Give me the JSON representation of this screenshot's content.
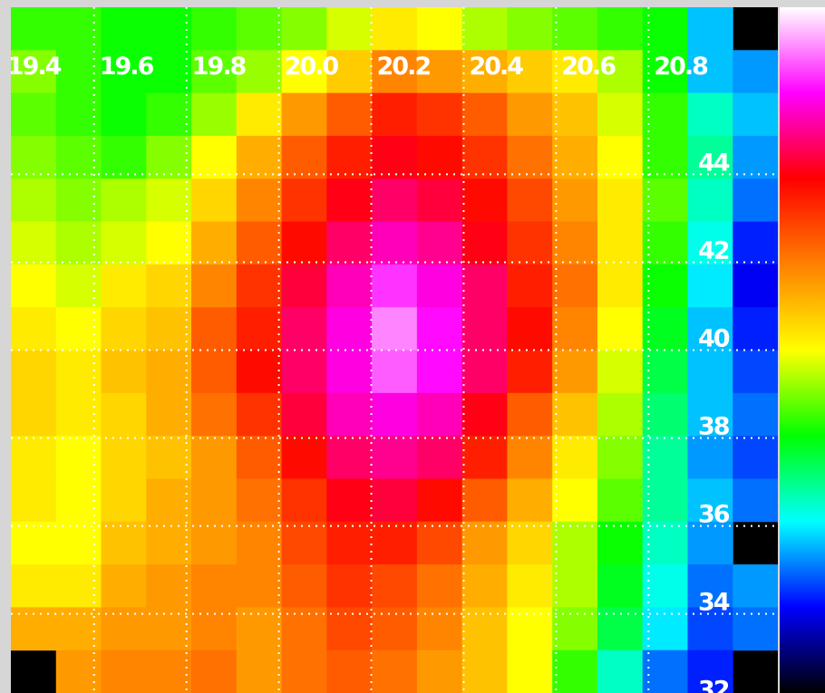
{
  "chart_data": {
    "type": "heatmap",
    "xlim": [
      19.42,
      21.08
    ],
    "ylim": [
      32.2,
      47.8
    ],
    "xticks": [
      19.4,
      19.6,
      19.8,
      {
        "value": 20,
        "label": "20.0"
      },
      20.2,
      20.4,
      20.6,
      20.8
    ],
    "yticks": [
      32,
      34,
      36,
      38,
      40,
      42,
      44
    ],
    "grid": true,
    "zlim": [
      0,
      100
    ],
    "colorscale": [
      "#000000",
      "#0000ff",
      "#00ffff",
      "#00ff00",
      "#ffff00",
      "#ff8000",
      "#ff0000",
      "#ff00ff",
      "#ffffff"
    ],
    "values": [
      [
        40,
        40,
        38,
        38,
        40,
        42,
        44,
        48,
        52,
        50,
        46,
        44,
        42,
        40,
        38,
        22,
        null
      ],
      [
        44,
        40,
        38,
        38,
        42,
        45,
        50,
        55,
        62,
        60,
        58,
        55,
        52,
        46,
        38,
        22,
        20
      ],
      [
        42,
        40,
        38,
        40,
        45,
        52,
        60,
        66,
        72,
        70,
        66,
        60,
        56,
        48,
        40,
        28,
        22
      ],
      [
        44,
        42,
        40,
        44,
        50,
        58,
        66,
        72,
        76,
        74,
        70,
        64,
        58,
        50,
        40,
        30,
        20
      ],
      [
        46,
        44,
        46,
        48,
        54,
        62,
        70,
        76,
        80,
        78,
        74,
        68,
        60,
        52,
        42,
        28,
        18
      ],
      [
        48,
        46,
        48,
        50,
        58,
        66,
        74,
        80,
        84,
        82,
        76,
        70,
        62,
        52,
        40,
        26,
        14
      ],
      [
        50,
        48,
        52,
        54,
        62,
        70,
        78,
        84,
        90,
        86,
        80,
        72,
        64,
        52,
        38,
        24,
        12
      ],
      [
        52,
        50,
        54,
        56,
        66,
        72,
        80,
        86,
        94,
        88,
        80,
        74,
        62,
        50,
        36,
        22,
        14
      ],
      [
        54,
        52,
        56,
        58,
        66,
        74,
        80,
        86,
        92,
        88,
        80,
        72,
        60,
        48,
        34,
        22,
        16
      ],
      [
        54,
        52,
        54,
        58,
        64,
        70,
        78,
        84,
        86,
        84,
        76,
        66,
        56,
        46,
        32,
        22,
        18
      ],
      [
        52,
        50,
        54,
        56,
        60,
        66,
        74,
        80,
        82,
        80,
        72,
        62,
        52,
        44,
        30,
        20,
        16
      ],
      [
        52,
        50,
        54,
        58,
        60,
        64,
        70,
        76,
        78,
        74,
        66,
        58,
        50,
        42,
        30,
        22,
        18
      ],
      [
        50,
        50,
        56,
        58,
        60,
        62,
        68,
        72,
        72,
        68,
        60,
        54,
        46,
        38,
        28,
        20,
        null
      ],
      [
        52,
        52,
        58,
        60,
        62,
        62,
        66,
        70,
        68,
        64,
        58,
        52,
        46,
        36,
        26,
        18,
        20
      ],
      [
        58,
        58,
        60,
        60,
        62,
        60,
        64,
        68,
        66,
        62,
        56,
        50,
        44,
        34,
        24,
        16,
        18
      ],
      [
        null,
        60,
        62,
        62,
        64,
        60,
        64,
        66,
        64,
        60,
        56,
        50,
        40,
        28,
        18,
        14,
        null
      ]
    ]
  }
}
